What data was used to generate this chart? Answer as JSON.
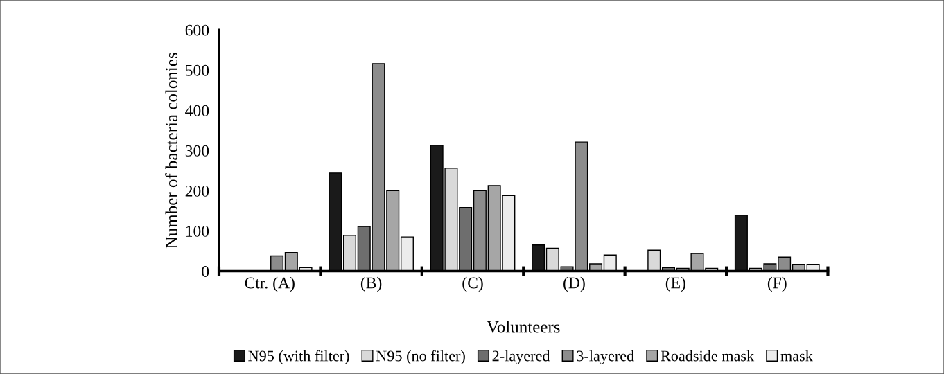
{
  "chart_data": {
    "type": "bar",
    "xlabel": "Volunteers",
    "ylabel": "Number of bacteria colonies",
    "categories": [
      "Ctr. (A)",
      "(B)",
      "(C)",
      "(D)",
      "(E)",
      "(F)"
    ],
    "series": [
      {
        "name": "N95 (with filter)",
        "color": "#1a1a1a",
        "values": [
          0,
          244,
          313,
          65,
          0,
          139
        ]
      },
      {
        "name": "N95 (no filter)",
        "color": "#d9d9d9",
        "values": [
          0,
          89,
          256,
          57,
          52,
          7
        ]
      },
      {
        "name": "2-layered",
        "color": "#6e6e6e",
        "values": [
          0,
          111,
          158,
          11,
          9,
          18
        ]
      },
      {
        "name": "3-layered",
        "color": "#8c8c8c",
        "values": [
          38,
          516,
          200,
          321,
          7,
          35
        ]
      },
      {
        "name": "Roadside mask",
        "color": "#a6a6a6",
        "values": [
          46,
          200,
          213,
          18,
          44,
          17
        ]
      },
      {
        "name": "mask",
        "color": "#ececec",
        "values": [
          9,
          85,
          188,
          40,
          7,
          17
        ]
      }
    ],
    "ylim": [
      0,
      600
    ],
    "yticks": [
      0,
      100,
      200,
      300,
      400,
      500,
      600
    ],
    "legend": "bottom"
  }
}
